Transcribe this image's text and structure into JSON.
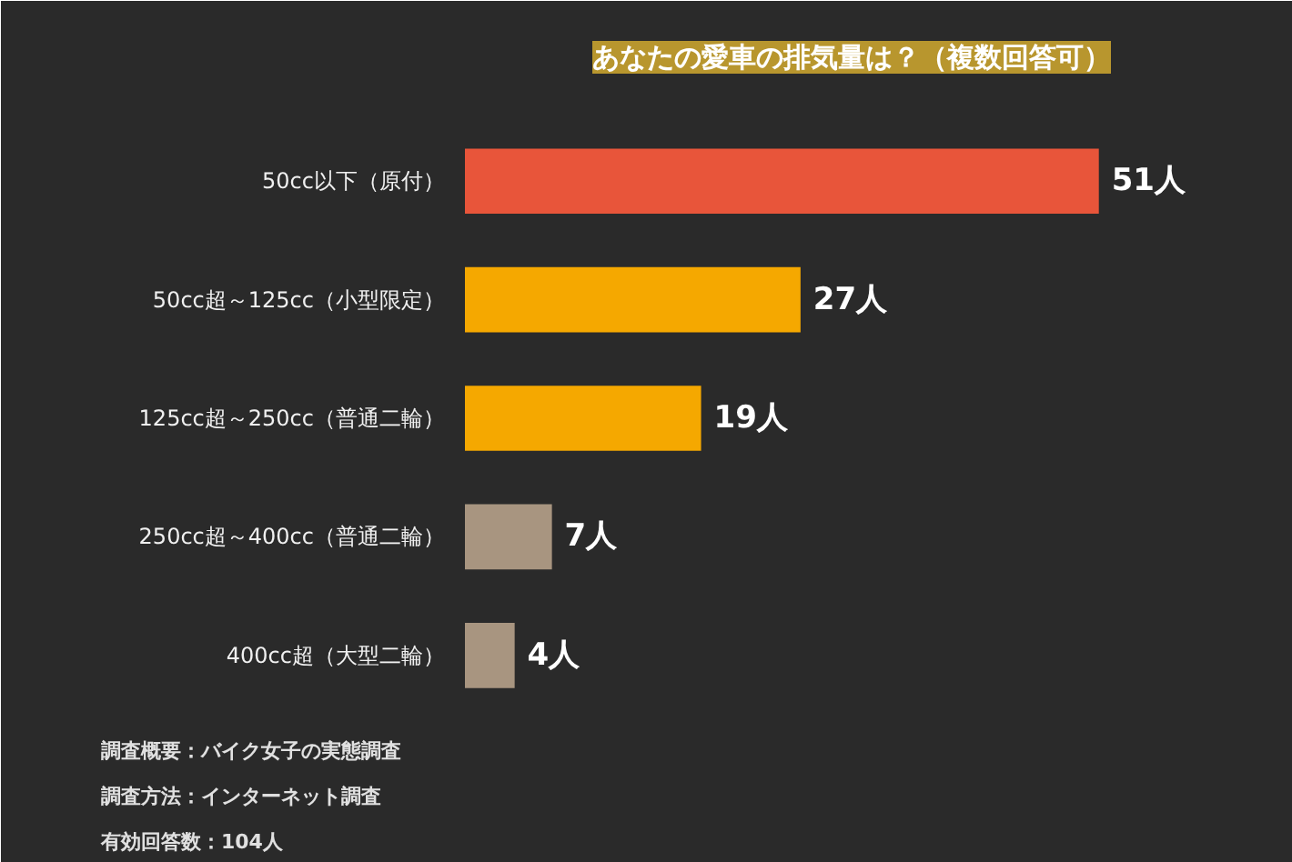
{
  "chart_data": {
    "type": "bar",
    "orientation": "horizontal",
    "title": "あなたの愛車の排気量は？（複数回答可）",
    "categories": [
      "50cc以下（原付）",
      "50cc超～125cc（小型限定）",
      "125cc超～250cc（普通二輪）",
      "250cc超～400cc（普通二輪）",
      "400cc超（大型二輪）"
    ],
    "values": [
      51,
      27,
      19,
      7,
      4
    ],
    "colors": [
      "#e8553a",
      "#f5a800",
      "#f5a800",
      "#a89580",
      "#a89580"
    ],
    "value_labels": [
      "51人",
      "27人",
      "19人",
      "7人",
      "4人"
    ],
    "annotations": [
      "調査概要：バイク女子の実態調査",
      "調査方法：インターネット調査",
      "有効回答数：104人"
    ],
    "grid": false
  }
}
